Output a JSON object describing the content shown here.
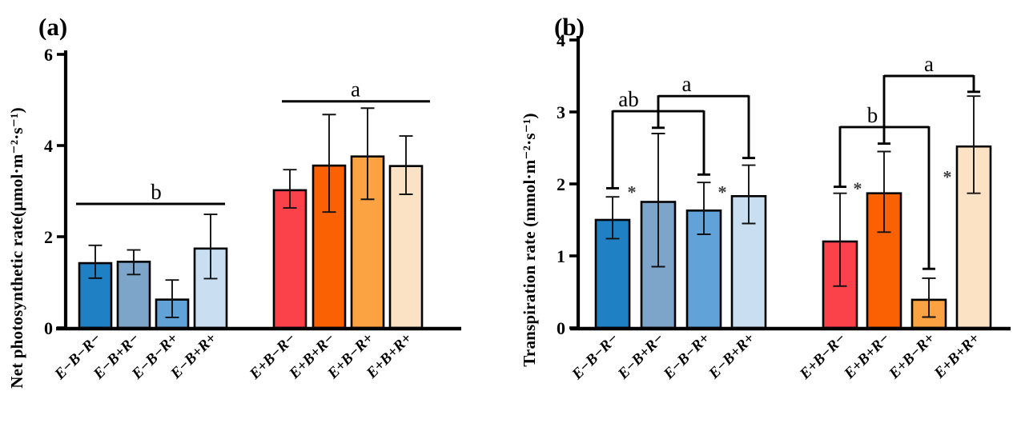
{
  "figure_title": "Net photosynthetic rate and transpiration rate bar charts",
  "chart_data": [
    {
      "type": "bar",
      "panel_label": "(a)",
      "ylabel": "Net photosynthetic rate(μmol·m⁻²·s⁻¹)",
      "xlabel": "",
      "ylim": [
        0,
        6
      ],
      "yticks": [
        "0",
        "2",
        "4",
        "6"
      ],
      "ytick_values": [
        0,
        2,
        4,
        6
      ],
      "grid": "off",
      "legend": "none",
      "categories": [
        "E−B−R−",
        "E−B+R−",
        "E−B−R+",
        "E−B+R+",
        "E+B−R−",
        "E+B+R−",
        "E+B−R+",
        "E+B+R+"
      ],
      "values": [
        1.42,
        1.45,
        0.62,
        1.74,
        3.02,
        3.56,
        3.76,
        3.55
      ],
      "err_top": [
        1.81,
        1.71,
        1.05,
        2.49,
        3.47,
        4.68,
        4.82,
        4.21
      ],
      "err_bot": [
        1.09,
        1.17,
        0.23,
        1.08,
        2.63,
        2.54,
        2.82,
        2.93
      ],
      "bar_colors": [
        "#1f80c4",
        "#7da4c9",
        "#61a2d8",
        "#c9def1",
        "#fb414a",
        "#f96103",
        "#fba342",
        "#fbe2c4"
      ],
      "sig_lines": [
        {
          "label": "b",
          "group": [
            0,
            3
          ],
          "y": 2.72
        },
        {
          "label": "a",
          "group": [
            4,
            7
          ],
          "y": 4.97
        }
      ]
    },
    {
      "type": "bar",
      "panel_label": "(b)",
      "ylabel": "Transpiration rate (mmol·m⁻²·s⁻¹)",
      "xlabel": "",
      "ylim": [
        0,
        4
      ],
      "yticks": [
        "0",
        "1",
        "2",
        "3",
        "4"
      ],
      "ytick_values": [
        0,
        1,
        2,
        3,
        4
      ],
      "grid": "off",
      "legend": "none",
      "categories": [
        "E−B−R−",
        "E−B+R−",
        "E−B−R+",
        "E−B+R+",
        "E+B−R−",
        "E+B+R−",
        "E+B−R+",
        "E+B+R+"
      ],
      "values": [
        1.5,
        1.75,
        1.63,
        1.83,
        1.2,
        1.87,
        0.39,
        2.52
      ],
      "err_top": [
        1.82,
        2.7,
        2.02,
        2.26,
        1.87,
        2.45,
        0.69,
        3.22
      ],
      "err_bot": [
        1.24,
        0.85,
        1.3,
        1.45,
        0.58,
        1.33,
        0.15,
        1.87
      ],
      "bar_colors": [
        "#1f80c4",
        "#7da4c9",
        "#61a2d8",
        "#c9def1",
        "#fb414a",
        "#f96103",
        "#fba342",
        "#fbe2c4"
      ],
      "brackets": [
        {
          "label": "ab",
          "from": 0,
          "to": 2,
          "y": 3.01,
          "drop_from": 1.94,
          "drop_to": 2.13
        },
        {
          "label": "a",
          "from": 1,
          "to": 3,
          "y": 3.22,
          "drop_from": 2.78,
          "drop_to": 2.36
        },
        {
          "label": "b",
          "from": 4,
          "to": 6,
          "y": 2.79,
          "drop_from": 1.96,
          "drop_to": 0.82
        },
        {
          "label": "a",
          "from": 5,
          "to": 7,
          "y": 3.5,
          "drop_from": 2.56,
          "drop_to": 3.28
        }
      ],
      "asterisks": [
        {
          "cat": 1,
          "y": 1.93,
          "symbol": "*"
        },
        {
          "cat": 3,
          "y": 1.93,
          "symbol": "*"
        },
        {
          "cat": 5,
          "y": 1.98,
          "symbol": "*"
        },
        {
          "cat": 7,
          "y": 2.14,
          "symbol": "*"
        }
      ],
      "asterisk_color": "#3d3d3d"
    }
  ]
}
